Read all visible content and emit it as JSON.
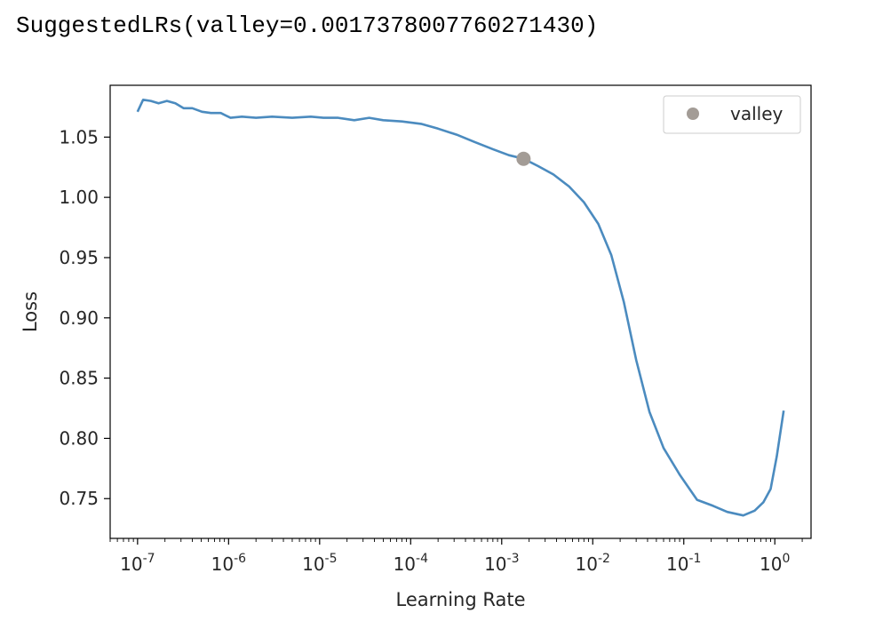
{
  "output": {
    "text": "SuggestedLRs(valley=0.0017378007760271430)"
  },
  "chart_data": {
    "type": "line",
    "title": "",
    "xlabel": "Learning Rate",
    "ylabel": "Loss",
    "xscale": "log",
    "xlim": [
      5e-08,
      2.5
    ],
    "ylim": [
      0.717,
      1.093
    ],
    "grid": false,
    "legend_position": "top-right",
    "x_tick_exponents": [
      "-7",
      "-6",
      "-5",
      "-4",
      "-3",
      "-2",
      "-1",
      "0"
    ],
    "y_ticks": [
      "0.75",
      "0.80",
      "0.85",
      "0.90",
      "0.95",
      "1.00",
      "1.05"
    ],
    "series": [
      {
        "type": "line",
        "color": "#4b8bbf",
        "x": [
          1e-07,
          1.15e-07,
          1.4e-07,
          1.7e-07,
          2.1e-07,
          2.6e-07,
          3.2e-07,
          4e-07,
          5.1e-07,
          6.4e-07,
          8.2e-07,
          1.05e-06,
          1.4e-06,
          2e-06,
          3e-06,
          5e-06,
          8e-06,
          1.1e-05,
          1.6e-05,
          2.4e-05,
          3.5e-05,
          5e-05,
          8e-05,
          0.00013,
          0.0002,
          0.00032,
          0.0005,
          0.0008,
          0.0012,
          0.00174,
          0.0025,
          0.0037,
          0.0055,
          0.008,
          0.0115,
          0.016,
          0.022,
          0.03,
          0.042,
          0.06,
          0.09,
          0.14,
          0.21,
          0.3,
          0.45,
          0.6,
          0.75,
          0.9,
          1.05,
          1.25
        ],
        "y": [
          1.071,
          1.081,
          1.08,
          1.078,
          1.08,
          1.078,
          1.074,
          1.074,
          1.071,
          1.07,
          1.07,
          1.066,
          1.067,
          1.066,
          1.067,
          1.066,
          1.067,
          1.066,
          1.066,
          1.064,
          1.066,
          1.064,
          1.063,
          1.061,
          1.057,
          1.052,
          1.046,
          1.04,
          1.035,
          1.032,
          1.026,
          1.019,
          1.009,
          0.996,
          0.978,
          0.952,
          0.913,
          0.865,
          0.822,
          0.792,
          0.77,
          0.749,
          0.744,
          0.739,
          0.736,
          0.74,
          0.747,
          0.758,
          0.785,
          0.823
        ]
      },
      {
        "type": "scatter",
        "name": "valley",
        "color": "#a39c96",
        "x": [
          0.0017378
        ],
        "y": [
          1.032
        ]
      }
    ]
  }
}
